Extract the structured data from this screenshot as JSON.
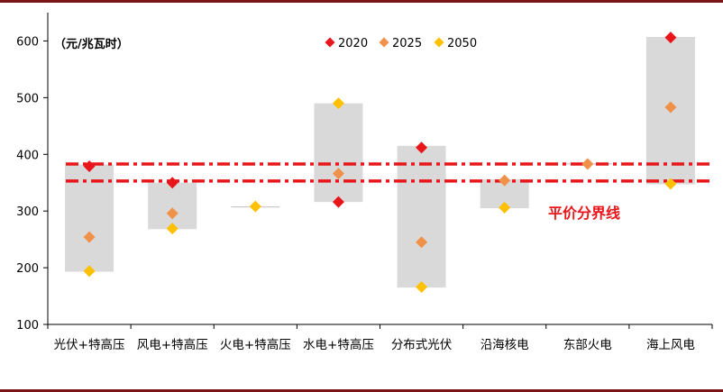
{
  "chart_data": {
    "type": "scatter",
    "unit_label": "（元/兆瓦时）",
    "categories": [
      "光伏+特高压",
      "风电+特高压",
      "火电+特高压",
      "水电+特高压",
      "分布式光伏",
      "沿海核电",
      "东部火电",
      "海上风电"
    ],
    "series": [
      {
        "name": "2020",
        "color": "#e8161b",
        "values": [
          379,
          350,
          null,
          316,
          412,
          null,
          null,
          606
        ]
      },
      {
        "name": "2025",
        "color": "#f0914a",
        "values": [
          254,
          296,
          null,
          366,
          245,
          354,
          383,
          483
        ]
      },
      {
        "name": "2050",
        "color": "#ffc000",
        "values": [
          194,
          269,
          308,
          490,
          166,
          306,
          null,
          348
        ]
      }
    ],
    "ranges": [
      {
        "low": 193,
        "high": 382
      },
      {
        "low": 268,
        "high": 350
      },
      {
        "low": 307,
        "high": 308
      },
      {
        "low": 316,
        "high": 490
      },
      {
        "low": 165,
        "high": 415
      },
      {
        "low": 305,
        "high": 356
      },
      {
        "low": 383,
        "high": 384
      },
      {
        "low": 347,
        "high": 607
      }
    ],
    "parity_lines": [
      383,
      353
    ],
    "parity_label": "平价分界线",
    "parity_color": "#e8161b",
    "range_color": "#d9d9d9",
    "ylim": [
      100,
      650
    ],
    "yticks": [
      100,
      200,
      300,
      400,
      500,
      600
    ],
    "legend_position": "top-center"
  }
}
